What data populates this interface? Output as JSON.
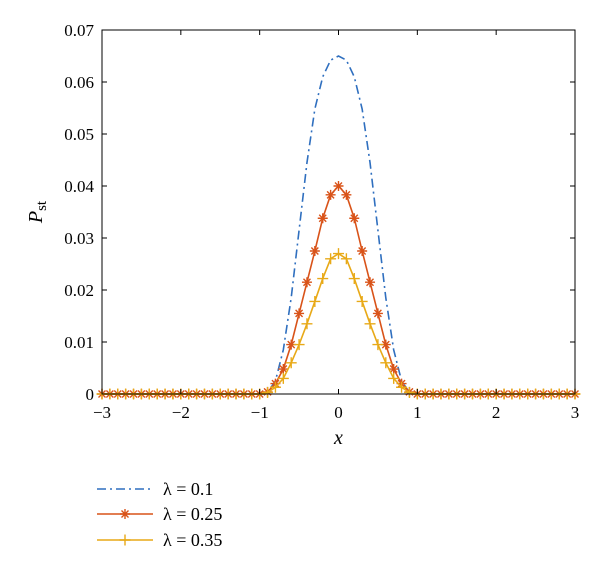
{
  "chart_data": {
    "type": "line",
    "xlabel": "x",
    "ylabel": "P_st",
    "ylabel_main": "P",
    "ylabel_sub": "st",
    "xlim": [
      -3,
      3
    ],
    "ylim": [
      0,
      0.07
    ],
    "xticks": [
      -3,
      -2,
      -1,
      0,
      1,
      2,
      3
    ],
    "xtick_labels": [
      "−3",
      "−2",
      "−1",
      "0",
      "1",
      "2",
      "3"
    ],
    "yticks": [
      0,
      0.01,
      0.02,
      0.03,
      0.04,
      0.05,
      0.06,
      0.07
    ],
    "ytick_labels": [
      "0",
      "0.01",
      "0.02",
      "0.03",
      "0.04",
      "0.05",
      "0.06",
      "0.07"
    ],
    "grid": false,
    "legend_position": "below",
    "x": [
      -3,
      -2.9,
      -2.8,
      -2.7,
      -2.6,
      -2.5,
      -2.4,
      -2.3,
      -2.2,
      -2.1,
      -2,
      -1.9,
      -1.8,
      -1.7,
      -1.6,
      -1.5,
      -1.4,
      -1.3,
      -1.2,
      -1.1,
      -1,
      -0.9,
      -0.8,
      -0.7,
      -0.6,
      -0.5,
      -0.4,
      -0.3,
      -0.2,
      -0.1,
      0,
      0.1,
      0.2,
      0.3,
      0.4,
      0.5,
      0.6,
      0.7,
      0.8,
      0.9,
      1,
      1.1,
      1.2,
      1.3,
      1.4,
      1.5,
      1.6,
      1.7,
      1.8,
      1.9,
      2,
      2.1,
      2.2,
      2.3,
      2.4,
      2.5,
      2.6,
      2.7,
      2.8,
      2.9,
      3
    ],
    "series": [
      {
        "name": "λ = 0.1",
        "color": "#2f6fbf",
        "style": "dashdot",
        "marker": "none",
        "values": [
          0,
          0,
          0,
          0,
          0,
          0,
          0,
          0,
          0,
          0,
          0,
          0,
          0,
          0,
          0,
          0,
          0,
          0,
          0,
          0,
          0,
          0.0003,
          0.0025,
          0.0085,
          0.0185,
          0.0315,
          0.0445,
          0.0548,
          0.061,
          0.0642,
          0.065,
          0.0642,
          0.061,
          0.0548,
          0.0445,
          0.0315,
          0.0185,
          0.0085,
          0.0025,
          0.0003,
          0,
          0,
          0,
          0,
          0,
          0,
          0,
          0,
          0,
          0,
          0,
          0,
          0,
          0,
          0,
          0,
          0,
          0,
          0,
          0,
          0
        ]
      },
      {
        "name": "λ = 0.25",
        "color": "#d95319",
        "style": "solid",
        "marker": "asterisk",
        "values": [
          0,
          0,
          0,
          0,
          0,
          0,
          0,
          0,
          0,
          0,
          0,
          0,
          0,
          0,
          0,
          0,
          0,
          0,
          0,
          0,
          0,
          0.0004,
          0.002,
          0.0048,
          0.0095,
          0.0155,
          0.0215,
          0.0275,
          0.0338,
          0.0383,
          0.04,
          0.0383,
          0.0338,
          0.0275,
          0.0215,
          0.0155,
          0.0095,
          0.0048,
          0.002,
          0.0004,
          0,
          0,
          0,
          0,
          0,
          0,
          0,
          0,
          0,
          0,
          0,
          0,
          0,
          0,
          0,
          0,
          0,
          0,
          0,
          0,
          0
        ]
      },
      {
        "name": "λ = 0.35",
        "color": "#e8a917",
        "style": "solid",
        "marker": "plus",
        "values": [
          0,
          0,
          0,
          0,
          0,
          0,
          0,
          0,
          0,
          0,
          0,
          0,
          0,
          0,
          0,
          0,
          0,
          0,
          0,
          0,
          0,
          0.0003,
          0.0013,
          0.003,
          0.006,
          0.0095,
          0.0135,
          0.0178,
          0.0222,
          0.026,
          0.027,
          0.026,
          0.0222,
          0.0178,
          0.0135,
          0.0095,
          0.006,
          0.003,
          0.0013,
          0.0003,
          0,
          0,
          0,
          0,
          0,
          0,
          0,
          0,
          0,
          0,
          0,
          0,
          0,
          0,
          0,
          0,
          0,
          0,
          0,
          0,
          0
        ]
      }
    ]
  }
}
